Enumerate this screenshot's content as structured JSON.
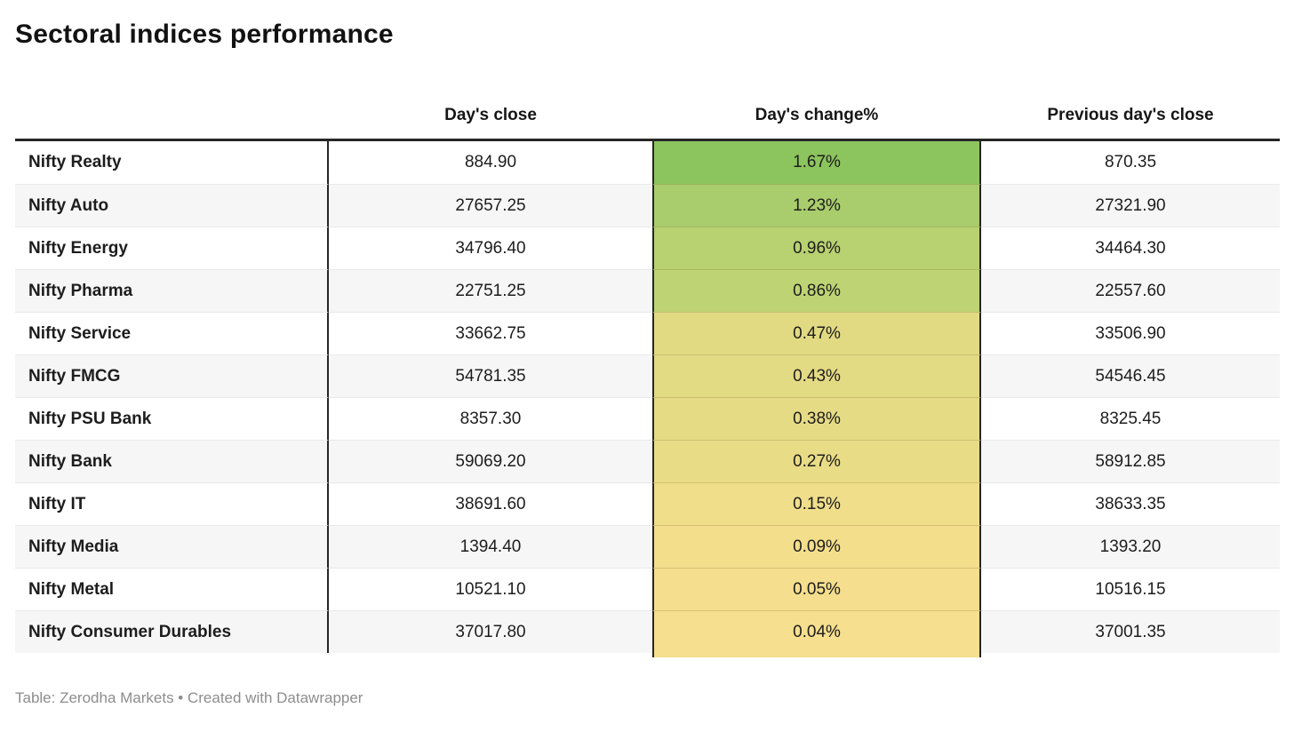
{
  "title": "Sectoral indices performance",
  "footer": {
    "text": "Table: Zerodha Markets • Created with Datawrapper"
  },
  "chart_data": {
    "type": "table",
    "title": "Sectoral indices performance",
    "columns": [
      "",
      "Day's close",
      "Day's change%",
      "Previous day's close"
    ],
    "heatmap_column": "Day's change%",
    "heatmap_scale": {
      "high_color": "#8cc45d",
      "low_color": "#f6df8e"
    },
    "stripe_color": "#f6f6f6",
    "border_color": "#262626",
    "rows": [
      {
        "name": "Nifty Realty",
        "close": "884.90",
        "change": "1.67%",
        "prev": "870.35",
        "change_color": "#8cc45d"
      },
      {
        "name": "Nifty Auto",
        "close": "27657.25",
        "change": "1.23%",
        "prev": "27321.90",
        "change_color": "#a9cd6c"
      },
      {
        "name": "Nifty Energy",
        "close": "34796.40",
        "change": "0.96%",
        "prev": "34464.30",
        "change_color": "#b8d171"
      },
      {
        "name": "Nifty Pharma",
        "close": "22751.25",
        "change": "0.86%",
        "prev": "22557.60",
        "change_color": "#bed474"
      },
      {
        "name": "Nifty Service",
        "close": "33662.75",
        "change": "0.47%",
        "prev": "33506.90",
        "change_color": "#e1da83"
      },
      {
        "name": "Nifty FMCG",
        "close": "54781.35",
        "change": "0.43%",
        "prev": "54546.45",
        "change_color": "#e3da84"
      },
      {
        "name": "Nifty PSU Bank",
        "close": "8357.30",
        "change": "0.38%",
        "prev": "8325.45",
        "change_color": "#e6db85"
      },
      {
        "name": "Nifty Bank",
        "close": "59069.20",
        "change": "0.27%",
        "prev": "58912.85",
        "change_color": "#e9dc86"
      },
      {
        "name": "Nifty IT",
        "close": "38691.60",
        "change": "0.15%",
        "prev": "38633.35",
        "change_color": "#f0de8b"
      },
      {
        "name": "Nifty Media",
        "close": "1394.40",
        "change": "0.09%",
        "prev": "1393.20",
        "change_color": "#f3de8c"
      },
      {
        "name": "Nifty Metal",
        "close": "10521.10",
        "change": "0.05%",
        "prev": "10516.15",
        "change_color": "#f5de8d"
      },
      {
        "name": "Nifty Consumer Durables",
        "close": "37017.80",
        "change": "0.04%",
        "prev": "37001.35",
        "change_color": "#f6df8e"
      }
    ]
  }
}
